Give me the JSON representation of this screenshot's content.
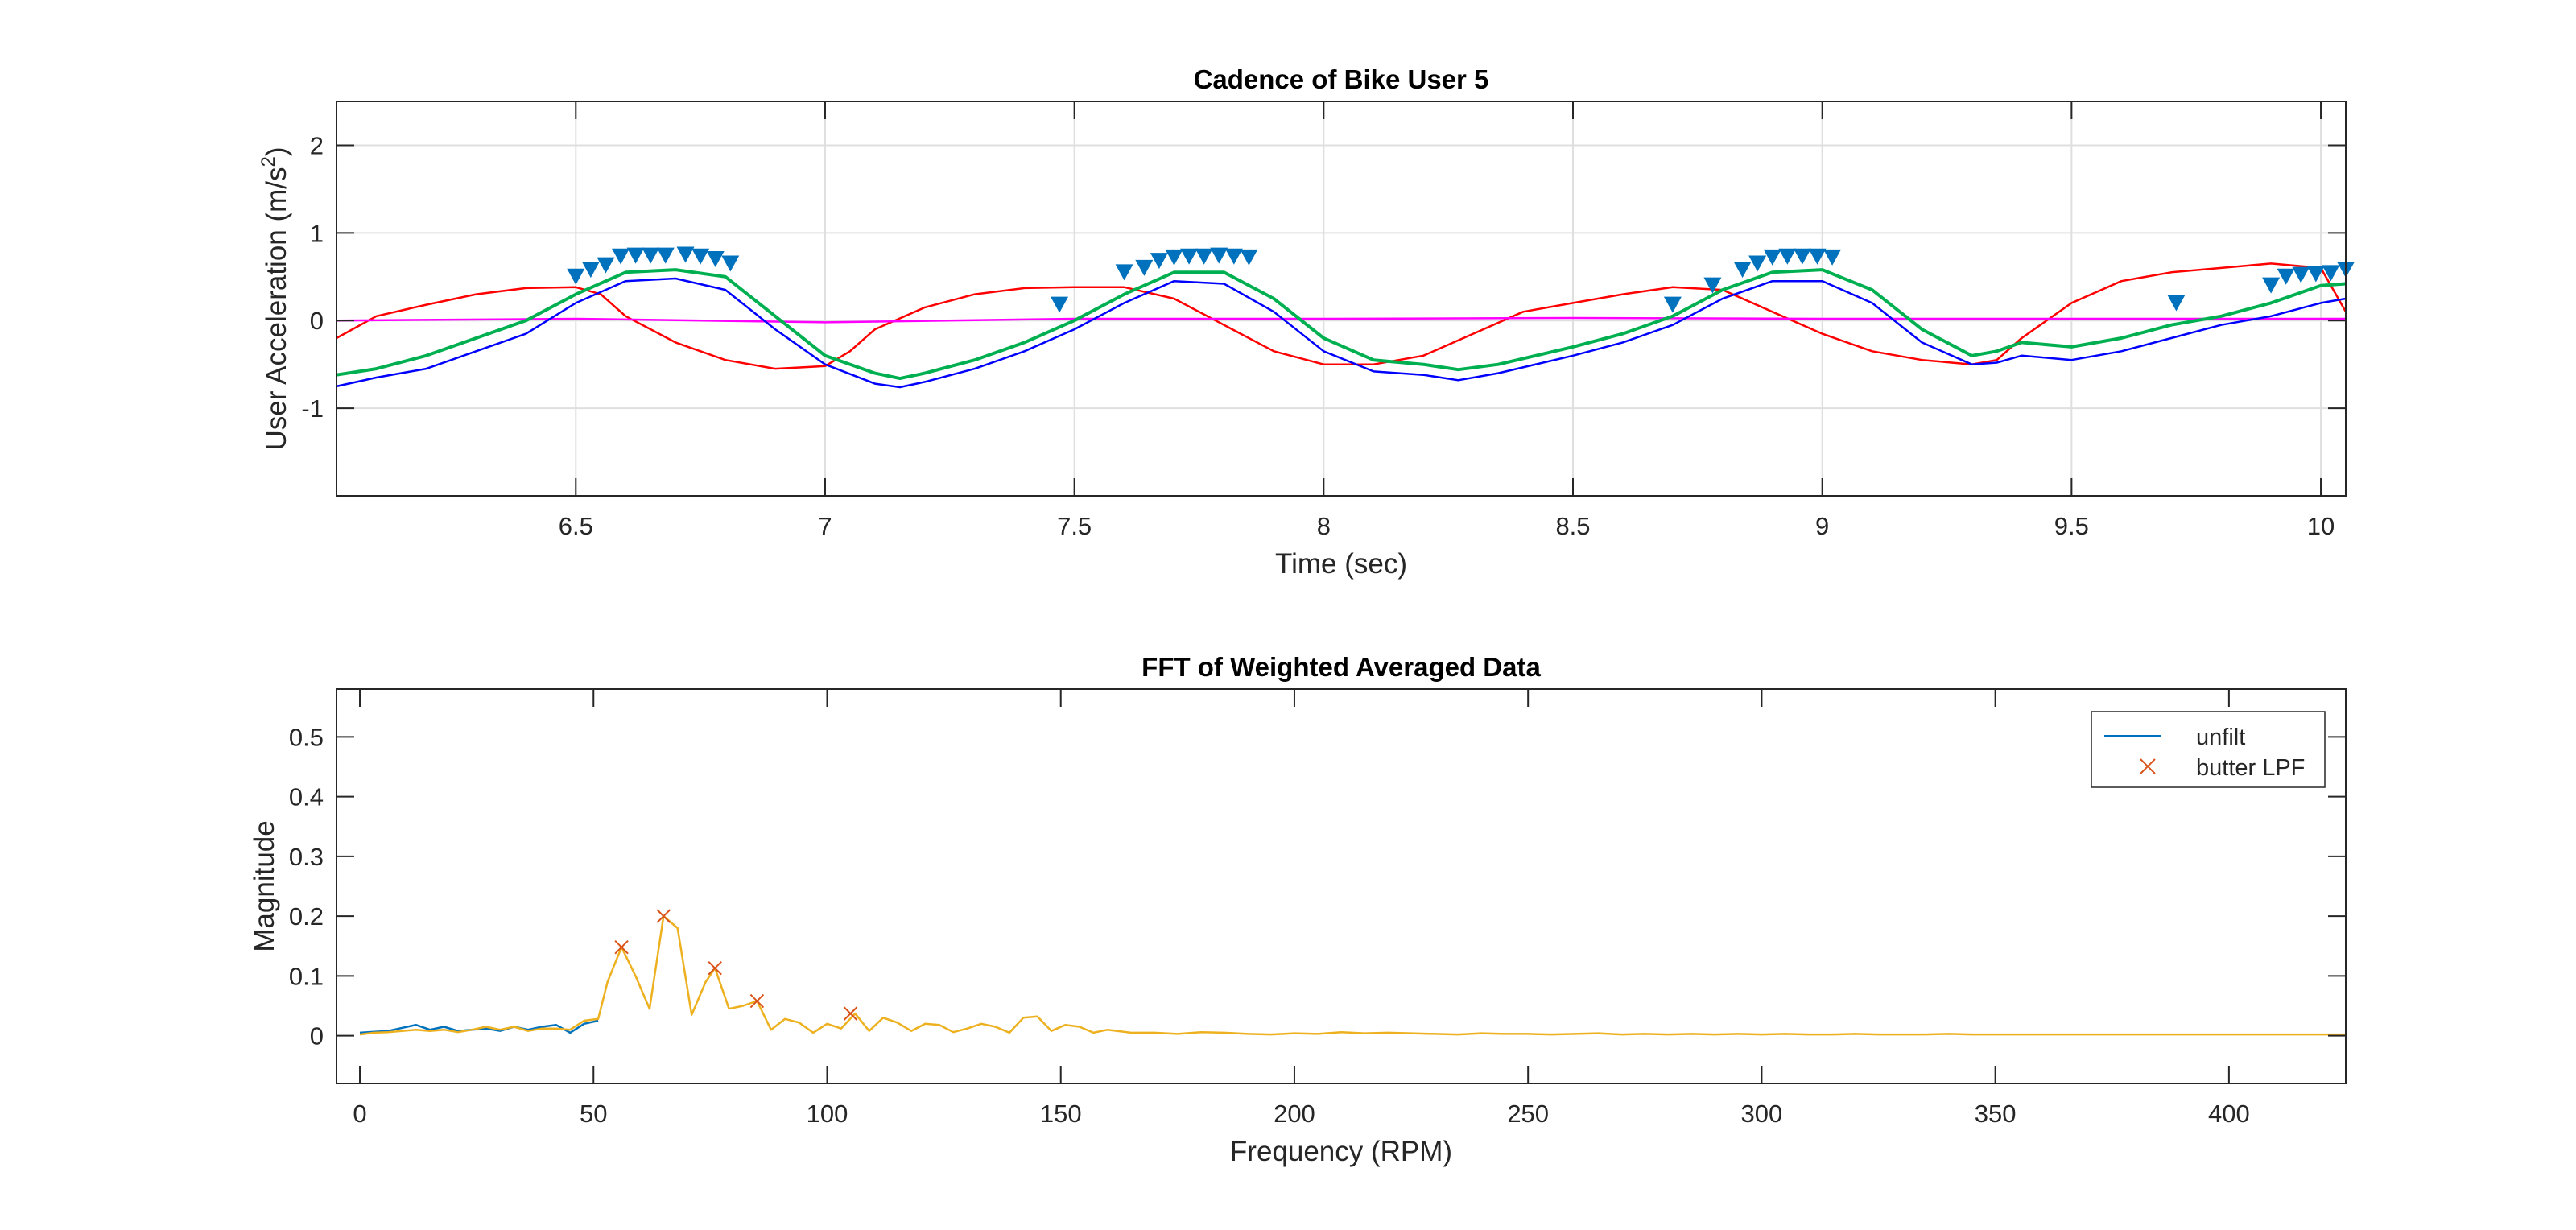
{
  "chart_data": [
    {
      "type": "line",
      "title": "Cadence of Bike User 5",
      "xlabel": "Time (sec)",
      "ylabel_prefix": "User Acceleration (m/s",
      "ylabel_superscript": "2",
      "ylabel_suffix": ")",
      "xlim": [
        6.02,
        10.05
      ],
      "ylim": [
        -2,
        2.5
      ],
      "xticks": [
        6.5,
        7,
        7.5,
        8,
        8.5,
        9,
        9.5,
        10
      ],
      "xtick_labels": [
        "6.5",
        "7",
        "7.5",
        "8",
        "8.5",
        "9",
        "9.5",
        "10"
      ],
      "yticks": [
        -1,
        0,
        1,
        2
      ],
      "ytick_labels": [
        "-1",
        "0",
        "1",
        "2"
      ],
      "grid": true,
      "series": [
        {
          "color": "#ff0000",
          "x": [
            6.02,
            6.1,
            6.2,
            6.3,
            6.4,
            6.5,
            6.55,
            6.6,
            6.7,
            6.8,
            6.9,
            7.0,
            7.05,
            7.1,
            7.2,
            7.3,
            7.4,
            7.5,
            7.6,
            7.7,
            7.8,
            7.9,
            8.0,
            8.1,
            8.2,
            8.3,
            8.4,
            8.5,
            8.6,
            8.7,
            8.8,
            8.9,
            9.0,
            9.1,
            9.2,
            9.3,
            9.35,
            9.4,
            9.5,
            9.6,
            9.7,
            9.8,
            9.9,
            10.0,
            10.05
          ],
          "y": [
            -0.2,
            0.05,
            0.18,
            0.3,
            0.37,
            0.38,
            0.3,
            0.05,
            -0.25,
            -0.45,
            -0.55,
            -0.52,
            -0.35,
            -0.1,
            0.15,
            0.3,
            0.37,
            0.38,
            0.38,
            0.25,
            -0.05,
            -0.35,
            -0.5,
            -0.5,
            -0.4,
            -0.15,
            0.1,
            0.2,
            0.3,
            0.38,
            0.35,
            0.1,
            -0.15,
            -0.35,
            -0.45,
            -0.5,
            -0.45,
            -0.2,
            0.2,
            0.45,
            0.55,
            0.6,
            0.65,
            0.6,
            0.1
          ]
        },
        {
          "color": "#ff00ff",
          "x": [
            6.02,
            6.5,
            7.0,
            7.5,
            8.0,
            8.5,
            9.0,
            9.5,
            10.05
          ],
          "y": [
            0.0,
            0.02,
            -0.02,
            0.02,
            0.02,
            0.03,
            0.02,
            0.02,
            0.02
          ]
        },
        {
          "color": "#0000ff",
          "x": [
            6.02,
            6.1,
            6.2,
            6.3,
            6.4,
            6.5,
            6.6,
            6.7,
            6.8,
            6.9,
            7.0,
            7.1,
            7.15,
            7.2,
            7.3,
            7.4,
            7.5,
            7.6,
            7.7,
            7.8,
            7.9,
            8.0,
            8.1,
            8.2,
            8.27,
            8.35,
            8.5,
            8.6,
            8.7,
            8.8,
            8.9,
            9.0,
            9.1,
            9.2,
            9.3,
            9.35,
            9.4,
            9.5,
            9.6,
            9.7,
            9.8,
            9.9,
            10.0,
            10.05
          ],
          "y": [
            -0.75,
            -0.65,
            -0.55,
            -0.35,
            -0.15,
            0.2,
            0.45,
            0.48,
            0.35,
            -0.1,
            -0.5,
            -0.72,
            -0.76,
            -0.7,
            -0.55,
            -0.35,
            -0.1,
            0.2,
            0.45,
            0.42,
            0.1,
            -0.35,
            -0.58,
            -0.62,
            -0.68,
            -0.6,
            -0.4,
            -0.25,
            -0.05,
            0.25,
            0.45,
            0.45,
            0.2,
            -0.25,
            -0.5,
            -0.48,
            -0.4,
            -0.45,
            -0.35,
            -0.2,
            -0.05,
            0.05,
            0.2,
            0.25
          ]
        },
        {
          "color": "#00b050",
          "x": [
            6.02,
            6.1,
            6.2,
            6.3,
            6.4,
            6.5,
            6.6,
            6.7,
            6.8,
            6.9,
            7.0,
            7.1,
            7.15,
            7.2,
            7.3,
            7.4,
            7.5,
            7.6,
            7.7,
            7.8,
            7.9,
            8.0,
            8.1,
            8.2,
            8.27,
            8.35,
            8.5,
            8.6,
            8.7,
            8.8,
            8.9,
            9.0,
            9.1,
            9.2,
            9.3,
            9.35,
            9.4,
            9.5,
            9.6,
            9.7,
            9.8,
            9.9,
            10.0,
            10.05
          ],
          "y": [
            -0.62,
            -0.55,
            -0.4,
            -0.2,
            0.0,
            0.3,
            0.55,
            0.58,
            0.5,
            0.05,
            -0.4,
            -0.6,
            -0.66,
            -0.6,
            -0.45,
            -0.25,
            0.0,
            0.3,
            0.55,
            0.55,
            0.25,
            -0.2,
            -0.45,
            -0.5,
            -0.56,
            -0.5,
            -0.3,
            -0.15,
            0.05,
            0.35,
            0.55,
            0.58,
            0.35,
            -0.1,
            -0.4,
            -0.35,
            -0.25,
            -0.3,
            -0.2,
            -0.05,
            0.05,
            0.2,
            0.4,
            0.42
          ]
        }
      ],
      "markers": {
        "color": "#0072bd",
        "symbol": "down-triangle",
        "x": [
          6.5,
          6.53,
          6.56,
          6.59,
          6.62,
          6.65,
          6.68,
          6.72,
          6.75,
          6.78,
          6.81,
          7.47,
          7.6,
          7.64,
          7.67,
          7.7,
          7.73,
          7.76,
          7.79,
          7.82,
          7.85,
          8.7,
          8.78,
          8.84,
          8.87,
          8.9,
          8.93,
          8.96,
          8.99,
          9.02,
          9.71,
          9.9,
          9.93,
          9.96,
          9.99,
          10.02,
          10.05
        ],
        "y": [
          0.5,
          0.58,
          0.63,
          0.73,
          0.74,
          0.74,
          0.74,
          0.75,
          0.73,
          0.7,
          0.65,
          0.18,
          0.55,
          0.6,
          0.68,
          0.72,
          0.73,
          0.73,
          0.74,
          0.73,
          0.72,
          0.18,
          0.4,
          0.58,
          0.65,
          0.72,
          0.73,
          0.73,
          0.73,
          0.72,
          0.2,
          0.4,
          0.5,
          0.52,
          0.53,
          0.54,
          0.58
        ]
      }
    },
    {
      "type": "line",
      "title": "FFT of Weighted Averaged Data",
      "xlabel": "Frequency (RPM)",
      "ylabel": "Magnitude",
      "xlim": [
        -5,
        425
      ],
      "ylim": [
        -0.08,
        0.58
      ],
      "xticks": [
        0,
        50,
        100,
        150,
        200,
        250,
        300,
        350,
        400
      ],
      "xtick_labels": [
        "0",
        "50",
        "100",
        "150",
        "200",
        "250",
        "300",
        "350",
        "400"
      ],
      "yticks": [
        0,
        0.1,
        0.2,
        0.3,
        0.4,
        0.5
      ],
      "ytick_labels": [
        "0",
        "0.1",
        "0.2",
        "0.3",
        "0.4",
        "0.5"
      ],
      "legend": {
        "position": "top-right",
        "entries": [
          "unfilt",
          "butter LPF"
        ]
      },
      "series": [
        {
          "name": "unfilt",
          "color": "#0072bd",
          "x": [
            0,
            6,
            12,
            15,
            18,
            21,
            24,
            27,
            30,
            33,
            36,
            39,
            42,
            45,
            48,
            51
          ],
          "y": [
            0.005,
            0.008,
            0.018,
            0.01,
            0.015,
            0.008,
            0.01,
            0.012,
            0.008,
            0.015,
            0.01,
            0.015,
            0.018,
            0.005,
            0.02,
            0.025
          ]
        },
        {
          "name": "butter LPF",
          "color": "#edb120",
          "marker_color": "#d95319",
          "x": [
            0,
            3,
            6,
            9,
            12,
            15,
            18,
            21,
            24,
            27,
            30,
            33,
            36,
            39,
            42,
            45,
            48,
            51,
            53,
            56,
            59,
            62,
            65,
            68,
            71,
            74,
            76,
            79,
            82,
            85,
            88,
            91,
            94,
            97,
            100,
            103,
            106,
            109,
            112,
            115,
            118,
            121,
            124,
            127,
            130,
            133,
            136,
            139,
            142,
            145,
            148,
            151,
            154,
            157,
            160,
            165,
            170,
            175,
            180,
            185,
            190,
            195,
            200,
            205,
            210,
            215,
            220,
            225,
            230,
            235,
            240,
            245,
            250,
            255,
            260,
            265,
            270,
            275,
            280,
            285,
            290,
            295,
            300,
            305,
            310,
            315,
            320,
            325,
            330,
            335,
            340,
            345,
            350,
            355,
            360,
            365,
            370,
            375,
            380,
            385,
            390,
            395,
            400,
            405,
            410,
            415,
            420,
            425
          ],
          "y": [
            0.002,
            0.005,
            0.006,
            0.008,
            0.01,
            0.008,
            0.01,
            0.006,
            0.01,
            0.015,
            0.01,
            0.015,
            0.008,
            0.012,
            0.012,
            0.01,
            0.025,
            0.028,
            0.09,
            0.148,
            0.1,
            0.045,
            0.2,
            0.18,
            0.035,
            0.09,
            0.113,
            0.045,
            0.05,
            0.058,
            0.01,
            0.028,
            0.022,
            0.005,
            0.02,
            0.012,
            0.037,
            0.008,
            0.03,
            0.022,
            0.008,
            0.02,
            0.018,
            0.006,
            0.012,
            0.02,
            0.015,
            0.005,
            0.03,
            0.032,
            0.008,
            0.018,
            0.015,
            0.005,
            0.01,
            0.005,
            0.005,
            0.003,
            0.006,
            0.005,
            0.003,
            0.002,
            0.004,
            0.003,
            0.006,
            0.004,
            0.005,
            0.004,
            0.003,
            0.002,
            0.004,
            0.003,
            0.003,
            0.002,
            0.003,
            0.004,
            0.002,
            0.003,
            0.002,
            0.003,
            0.002,
            0.003,
            0.002,
            0.003,
            0.002,
            0.002,
            0.003,
            0.002,
            0.002,
            0.002,
            0.003,
            0.002,
            0.002,
            0.002,
            0.002,
            0.002,
            0.002,
            0.002,
            0.002,
            0.002,
            0.002,
            0.002,
            0.002,
            0.002,
            0.002,
            0.002,
            0.002,
            0.002
          ],
          "peaks": {
            "x": [
              56,
              65,
              76,
              85,
              105
            ],
            "y": [
              0.148,
              0.2,
              0.113,
              0.058,
              0.037
            ]
          }
        }
      ]
    }
  ]
}
